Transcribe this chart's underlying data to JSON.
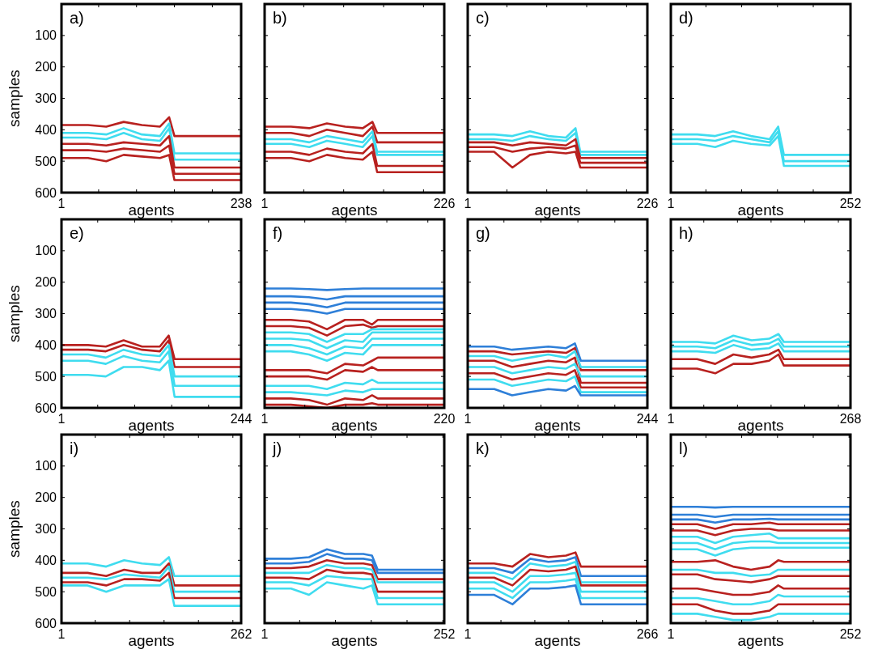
{
  "chart_data": [
    {
      "type": "line",
      "title": "a)",
      "ylabel": "samples",
      "xlabel": "agents",
      "xlim": [
        1,
        238
      ],
      "xticks": [
        1,
        {
          "value": 50,
          "label": null
        },
        {
          "value": 100,
          "label": null
        },
        {
          "value": 150,
          "label": null
        },
        {
          "value": 200,
          "label": null
        },
        238
      ],
      "ylim": [
        600,
        0
      ],
      "yticks": [
        100,
        200,
        300,
        400,
        500,
        600
      ],
      "x": [
        1,
        36,
        60,
        83,
        107,
        131,
        143,
        150,
        238
      ],
      "series": [
        {
          "color": "#b8211f",
          "values": [
            385,
            385,
            390,
            375,
            385,
            390,
            360,
            420,
            420
          ]
        },
        {
          "color": "#3fdcef",
          "values": [
            410,
            410,
            415,
            395,
            415,
            420,
            380,
            475,
            475
          ]
        },
        {
          "color": "#3fdcef",
          "values": [
            425,
            425,
            430,
            410,
            430,
            435,
            395,
            495,
            495
          ]
        },
        {
          "color": "#b8211f",
          "values": [
            445,
            445,
            450,
            440,
            445,
            450,
            420,
            520,
            520
          ]
        },
        {
          "color": "#b8211f",
          "values": [
            465,
            465,
            470,
            460,
            465,
            470,
            450,
            540,
            540
          ]
        },
        {
          "color": "#b8211f",
          "values": [
            490,
            490,
            500,
            480,
            485,
            490,
            480,
            560,
            560
          ]
        }
      ]
    },
    {
      "type": "line",
      "title": "b)",
      "xlabel": "agents",
      "tick_labels": "x",
      "xlim": [
        1,
        226
      ],
      "xticks": [
        1,
        {
          "value": 50,
          "label": null
        },
        {
          "value": 100,
          "label": null
        },
        {
          "value": 150,
          "label": null
        },
        {
          "value": 200,
          "label": null
        },
        226
      ],
      "ylim": [
        600,
        0
      ],
      "yticks": [
        100,
        200,
        300,
        400,
        500,
        600
      ],
      "x": [
        1,
        34,
        57,
        79,
        102,
        124,
        136,
        142,
        226
      ],
      "series": [
        {
          "color": "#b8211f",
          "values": [
            390,
            390,
            395,
            380,
            390,
            395,
            375,
            410,
            410
          ]
        },
        {
          "color": "#b8211f",
          "values": [
            410,
            410,
            420,
            400,
            410,
            420,
            390,
            440,
            440
          ]
        },
        {
          "color": "#3fdcef",
          "values": [
            430,
            430,
            440,
            420,
            430,
            440,
            405,
            470,
            470
          ]
        },
        {
          "color": "#3fdcef",
          "values": [
            445,
            445,
            455,
            435,
            445,
            455,
            420,
            480,
            480
          ]
        },
        {
          "color": "#b8211f",
          "values": [
            470,
            470,
            480,
            460,
            470,
            475,
            445,
            515,
            515
          ]
        },
        {
          "color": "#b8211f",
          "values": [
            490,
            490,
            500,
            480,
            490,
            495,
            470,
            535,
            535
          ]
        }
      ]
    },
    {
      "type": "line",
      "title": "c)",
      "xlabel": "agents",
      "tick_labels": "x",
      "xlim": [
        1,
        226
      ],
      "xticks": [
        1,
        {
          "value": 50,
          "label": null
        },
        {
          "value": 100,
          "label": null
        },
        {
          "value": 150,
          "label": null
        },
        {
          "value": 200,
          "label": null
        },
        226
      ],
      "ylim": [
        600,
        0
      ],
      "yticks": [
        100,
        200,
        300,
        400,
        500,
        600
      ],
      "x": [
        1,
        34,
        57,
        79,
        102,
        124,
        136,
        142,
        226
      ],
      "series": [
        {
          "color": "#3fdcef",
          "values": [
            415,
            415,
            420,
            405,
            420,
            425,
            395,
            470,
            470
          ]
        },
        {
          "color": "#3fdcef",
          "values": [
            430,
            430,
            435,
            420,
            430,
            435,
            410,
            480,
            480
          ]
        },
        {
          "color": "#b8211f",
          "values": [
            440,
            440,
            450,
            440,
            445,
            450,
            430,
            490,
            490
          ]
        },
        {
          "color": "#b8211f",
          "values": [
            455,
            455,
            470,
            460,
            455,
            460,
            450,
            505,
            505
          ]
        },
        {
          "color": "#b8211f",
          "values": [
            470,
            470,
            520,
            480,
            470,
            475,
            470,
            520,
            520
          ]
        }
      ]
    },
    {
      "type": "line",
      "title": "d)",
      "xlabel": "agents",
      "tick_labels": "x",
      "xlim": [
        1,
        252
      ],
      "xticks": [
        1,
        {
          "value": 50,
          "label": null
        },
        {
          "value": 100,
          "label": null
        },
        {
          "value": 150,
          "label": null
        },
        {
          "value": 200,
          "label": null
        },
        252
      ],
      "ylim": [
        600,
        0
      ],
      "yticks": [
        100,
        200,
        300,
        400,
        500,
        600
      ],
      "x": [
        1,
        38,
        63,
        88,
        113,
        139,
        151,
        159,
        252
      ],
      "series": [
        {
          "color": "#3fdcef",
          "values": [
            415,
            415,
            420,
            405,
            420,
            430,
            390,
            480,
            480
          ]
        },
        {
          "color": "#3fdcef",
          "values": [
            430,
            430,
            435,
            420,
            430,
            440,
            405,
            500,
            500
          ]
        },
        {
          "color": "#3fdcef",
          "values": [
            445,
            445,
            455,
            435,
            445,
            450,
            420,
            515,
            515
          ]
        }
      ]
    },
    {
      "type": "line",
      "title": "e)",
      "ylabel": "samples",
      "xlabel": "agents",
      "xlim": [
        1,
        244
      ],
      "xticks": [
        1,
        {
          "value": 50,
          "label": null
        },
        {
          "value": 100,
          "label": null
        },
        {
          "value": 150,
          "label": null
        },
        {
          "value": 200,
          "label": null
        },
        244
      ],
      "ylim": [
        600,
        0
      ],
      "yticks": [
        100,
        200,
        300,
        400,
        500,
        600
      ],
      "x": [
        1,
        37,
        61,
        85,
        110,
        134,
        146,
        154,
        244
      ],
      "series": [
        {
          "color": "#b8211f",
          "values": [
            400,
            400,
            405,
            385,
            405,
            405,
            370,
            445,
            445
          ]
        },
        {
          "color": "#b8211f",
          "values": [
            415,
            415,
            420,
            400,
            415,
            420,
            385,
            470,
            470
          ]
        },
        {
          "color": "#3fdcef",
          "values": [
            430,
            430,
            440,
            415,
            430,
            435,
            400,
            500,
            500
          ]
        },
        {
          "color": "#3fdcef",
          "values": [
            450,
            450,
            460,
            435,
            450,
            455,
            420,
            530,
            530
          ]
        },
        {
          "color": "#3fdcef",
          "values": [
            495,
            495,
            500,
            470,
            470,
            480,
            450,
            565,
            565
          ]
        }
      ]
    },
    {
      "type": "line",
      "title": "f)",
      "xlabel": "agents",
      "tick_labels": "x",
      "xlim": [
        1,
        220
      ],
      "xticks": [
        1,
        {
          "value": 50,
          "label": null
        },
        {
          "value": 100,
          "label": null
        },
        {
          "value": 150,
          "label": null
        },
        {
          "value": 200,
          "label": null
        },
        220
      ],
      "ylim": [
        600,
        0
      ],
      "yticks": [
        100,
        200,
        300,
        400,
        500,
        600
      ],
      "x": [
        1,
        33,
        55,
        77,
        99,
        121,
        132,
        139,
        220
      ],
      "series": [
        {
          "color": "#2e7fd8",
          "values": [
            220,
            220,
            222,
            225,
            222,
            220,
            220,
            220,
            220
          ]
        },
        {
          "color": "#2e7fd8",
          "values": [
            245,
            245,
            248,
            255,
            245,
            245,
            245,
            245,
            245
          ]
        },
        {
          "color": "#2e7fd8",
          "values": [
            265,
            265,
            270,
            280,
            265,
            265,
            265,
            265,
            265
          ]
        },
        {
          "color": "#2e7fd8",
          "values": [
            285,
            285,
            290,
            300,
            285,
            285,
            285,
            285,
            285
          ]
        },
        {
          "color": "#b8211f",
          "values": [
            320,
            320,
            325,
            350,
            320,
            320,
            335,
            320,
            320
          ]
        },
        {
          "color": "#b8211f",
          "values": [
            340,
            340,
            345,
            370,
            340,
            335,
            345,
            340,
            340
          ]
        },
        {
          "color": "#3fdcef",
          "values": [
            360,
            360,
            365,
            390,
            365,
            365,
            350,
            350,
            350
          ]
        },
        {
          "color": "#3fdcef",
          "values": [
            380,
            380,
            385,
            410,
            385,
            390,
            360,
            360,
            360
          ]
        },
        {
          "color": "#3fdcef",
          "values": [
            400,
            400,
            410,
            430,
            405,
            410,
            380,
            380,
            380
          ]
        },
        {
          "color": "#3fdcef",
          "values": [
            420,
            420,
            430,
            450,
            425,
            430,
            400,
            400,
            400
          ]
        },
        {
          "color": "#b8211f",
          "values": [
            480,
            480,
            480,
            490,
            460,
            465,
            450,
            440,
            440
          ]
        },
        {
          "color": "#b8211f",
          "values": [
            500,
            500,
            500,
            510,
            480,
            485,
            470,
            480,
            480
          ]
        },
        {
          "color": "#3fdcef",
          "values": [
            530,
            530,
            530,
            540,
            520,
            525,
            510,
            520,
            520
          ]
        },
        {
          "color": "#3fdcef",
          "values": [
            550,
            550,
            555,
            560,
            545,
            550,
            540,
            540,
            540
          ]
        },
        {
          "color": "#b8211f",
          "values": [
            570,
            570,
            575,
            590,
            570,
            575,
            560,
            570,
            570
          ]
        },
        {
          "color": "#b8211f",
          "values": [
            590,
            590,
            595,
            600,
            590,
            590,
            585,
            590,
            590
          ]
        }
      ]
    },
    {
      "type": "line",
      "title": "g)",
      "xlabel": "agents",
      "tick_labels": "x",
      "xlim": [
        1,
        244
      ],
      "xticks": [
        1,
        {
          "value": 50,
          "label": null
        },
        {
          "value": 100,
          "label": null
        },
        {
          "value": 150,
          "label": null
        },
        {
          "value": 200,
          "label": null
        },
        244
      ],
      "ylim": [
        600,
        0
      ],
      "yticks": [
        100,
        200,
        300,
        400,
        500,
        600
      ],
      "x": [
        1,
        37,
        61,
        85,
        110,
        134,
        146,
        154,
        244
      ],
      "series": [
        {
          "color": "#2e7fd8",
          "values": [
            405,
            405,
            415,
            410,
            405,
            410,
            395,
            450,
            450
          ]
        },
        {
          "color": "#b8211f",
          "values": [
            420,
            420,
            430,
            425,
            420,
            425,
            410,
            480,
            480
          ]
        },
        {
          "color": "#3fdcef",
          "values": [
            435,
            435,
            450,
            440,
            430,
            440,
            420,
            470,
            470
          ]
        },
        {
          "color": "#b8211f",
          "values": [
            450,
            450,
            470,
            460,
            450,
            455,
            440,
            520,
            520
          ]
        },
        {
          "color": "#3fdcef",
          "values": [
            470,
            470,
            490,
            480,
            470,
            475,
            460,
            500,
            500
          ]
        },
        {
          "color": "#b8211f",
          "values": [
            490,
            490,
            510,
            500,
            490,
            495,
            480,
            535,
            535
          ]
        },
        {
          "color": "#3fdcef",
          "values": [
            510,
            510,
            530,
            520,
            510,
            515,
            500,
            550,
            550
          ]
        },
        {
          "color": "#2e7fd8",
          "values": [
            540,
            540,
            560,
            550,
            540,
            545,
            530,
            560,
            560
          ]
        }
      ]
    },
    {
      "type": "line",
      "title": "h)",
      "xlabel": "agents",
      "tick_labels": "x",
      "xlim": [
        1,
        268
      ],
      "xticks": [
        1,
        {
          "value": 50,
          "label": null
        },
        {
          "value": 100,
          "label": null
        },
        {
          "value": 150,
          "label": null
        },
        {
          "value": 200,
          "label": null
        },
        {
          "value": 250,
          "label": null
        },
        268
      ],
      "ylim": [
        600,
        0
      ],
      "yticks": [
        100,
        200,
        300,
        400,
        500,
        600
      ],
      "x": [
        1,
        40,
        67,
        94,
        121,
        147,
        161,
        169,
        268
      ],
      "series": [
        {
          "color": "#3fdcef",
          "values": [
            390,
            390,
            395,
            370,
            385,
            380,
            365,
            390,
            390
          ]
        },
        {
          "color": "#3fdcef",
          "values": [
            405,
            405,
            410,
            385,
            400,
            395,
            380,
            405,
            405
          ]
        },
        {
          "color": "#3fdcef",
          "values": [
            420,
            420,
            425,
            400,
            415,
            410,
            395,
            420,
            420
          ]
        },
        {
          "color": "#b8211f",
          "values": [
            445,
            445,
            460,
            430,
            440,
            430,
            415,
            445,
            445
          ]
        },
        {
          "color": "#b8211f",
          "values": [
            475,
            475,
            490,
            460,
            460,
            450,
            430,
            465,
            465
          ]
        }
      ]
    },
    {
      "type": "line",
      "title": "i)",
      "ylabel": "samples",
      "xlabel": "agents",
      "xlim": [
        1,
        262
      ],
      "xticks": [
        1,
        {
          "value": 50,
          "label": null
        },
        {
          "value": 100,
          "label": null
        },
        {
          "value": 150,
          "label": null
        },
        {
          "value": 200,
          "label": null
        },
        {
          "value": 250,
          "label": null
        },
        262
      ],
      "ylim": [
        600,
        0
      ],
      "yticks": [
        100,
        200,
        300,
        400,
        500,
        600
      ],
      "x": [
        1,
        39,
        66,
        92,
        118,
        144,
        157,
        165,
        262
      ],
      "series": [
        {
          "color": "#3fdcef",
          "values": [
            410,
            410,
            420,
            400,
            410,
            415,
            390,
            450,
            450
          ]
        },
        {
          "color": "#b8211f",
          "values": [
            440,
            440,
            450,
            430,
            440,
            440,
            410,
            480,
            480
          ]
        },
        {
          "color": "#3fdcef",
          "values": [
            455,
            455,
            460,
            445,
            450,
            455,
            420,
            500,
            500
          ]
        },
        {
          "color": "#b8211f",
          "values": [
            470,
            470,
            480,
            460,
            460,
            465,
            440,
            520,
            520
          ]
        },
        {
          "color": "#3fdcef",
          "values": [
            480,
            480,
            500,
            480,
            480,
            480,
            460,
            545,
            545
          ]
        }
      ]
    },
    {
      "type": "line",
      "title": "j)",
      "xlabel": "agents",
      "tick_labels": "x",
      "xlim": [
        1,
        252
      ],
      "xticks": [
        1,
        {
          "value": 50,
          "label": null
        },
        {
          "value": 100,
          "label": null
        },
        {
          "value": 150,
          "label": null
        },
        {
          "value": 200,
          "label": null
        },
        {
          "value": 250,
          "label": null
        },
        252
      ],
      "ylim": [
        600,
        0
      ],
      "yticks": [
        100,
        200,
        300,
        400,
        500,
        600
      ],
      "x": [
        1,
        38,
        63,
        88,
        113,
        139,
        151,
        159,
        252
      ],
      "series": [
        {
          "color": "#2e7fd8",
          "values": [
            395,
            395,
            390,
            365,
            380,
            380,
            385,
            430,
            430
          ]
        },
        {
          "color": "#2e7fd8",
          "values": [
            410,
            410,
            405,
            380,
            395,
            395,
            400,
            440,
            440
          ]
        },
        {
          "color": "#b8211f",
          "values": [
            425,
            425,
            420,
            400,
            410,
            410,
            415,
            460,
            460
          ]
        },
        {
          "color": "#3fdcef",
          "values": [
            440,
            440,
            440,
            415,
            425,
            425,
            430,
            470,
            470
          ]
        },
        {
          "color": "#b8211f",
          "values": [
            455,
            455,
            460,
            430,
            440,
            440,
            445,
            500,
            500
          ]
        },
        {
          "color": "#3fdcef",
          "values": [
            470,
            470,
            480,
            450,
            455,
            460,
            460,
            520,
            520
          ]
        },
        {
          "color": "#3fdcef",
          "values": [
            490,
            490,
            510,
            470,
            480,
            490,
            480,
            540,
            540
          ]
        }
      ]
    },
    {
      "type": "line",
      "title": "k)",
      "xlabel": "agents",
      "tick_labels": "x",
      "xlim": [
        1,
        266
      ],
      "xticks": [
        1,
        {
          "value": 50,
          "label": null
        },
        {
          "value": 100,
          "label": null
        },
        {
          "value": 150,
          "label": null
        },
        {
          "value": 200,
          "label": null
        },
        {
          "value": 250,
          "label": null
        },
        266
      ],
      "ylim": [
        600,
        0
      ],
      "yticks": [
        100,
        200,
        300,
        400,
        500,
        600
      ],
      "x": [
        1,
        40,
        67,
        93,
        120,
        146,
        160,
        168,
        266
      ],
      "series": [
        {
          "color": "#b8211f",
          "values": [
            410,
            410,
            420,
            380,
            390,
            385,
            375,
            420,
            420
          ]
        },
        {
          "color": "#2e7fd8",
          "values": [
            425,
            425,
            440,
            395,
            405,
            400,
            390,
            450,
            450
          ]
        },
        {
          "color": "#3fdcef",
          "values": [
            440,
            440,
            460,
            410,
            420,
            415,
            405,
            470,
            470
          ]
        },
        {
          "color": "#b8211f",
          "values": [
            455,
            455,
            480,
            430,
            435,
            430,
            420,
            480,
            480
          ]
        },
        {
          "color": "#3fdcef",
          "values": [
            470,
            470,
            500,
            450,
            450,
            445,
            440,
            500,
            500
          ]
        },
        {
          "color": "#3fdcef",
          "values": [
            490,
            490,
            520,
            470,
            470,
            465,
            460,
            520,
            520
          ]
        },
        {
          "color": "#2e7fd8",
          "values": [
            510,
            510,
            540,
            490,
            490,
            485,
            480,
            540,
            540
          ]
        }
      ]
    },
    {
      "type": "line",
      "title": "l)",
      "xlabel": "agents",
      "tick_labels": "x",
      "xlim": [
        1,
        252
      ],
      "xticks": [
        1,
        {
          "value": 50,
          "label": null
        },
        {
          "value": 100,
          "label": null
        },
        {
          "value": 150,
          "label": null
        },
        {
          "value": 200,
          "label": null
        },
        {
          "value": 250,
          "label": null
        },
        252
      ],
      "ylim": [
        600,
        0
      ],
      "yticks": [
        100,
        200,
        300,
        400,
        500,
        600
      ],
      "x": [
        1,
        38,
        63,
        88,
        113,
        139,
        151,
        159,
        252
      ],
      "series": [
        {
          "color": "#2e7fd8",
          "values": [
            230,
            230,
            232,
            230,
            230,
            230,
            230,
            230,
            230
          ]
        },
        {
          "color": "#2e7fd8",
          "values": [
            255,
            255,
            262,
            255,
            255,
            255,
            255,
            255,
            255
          ]
        },
        {
          "color": "#2e7fd8",
          "values": [
            270,
            270,
            280,
            270,
            270,
            268,
            270,
            270,
            270
          ]
        },
        {
          "color": "#b8211f",
          "values": [
            285,
            285,
            300,
            285,
            285,
            280,
            285,
            285,
            285
          ]
        },
        {
          "color": "#b8211f",
          "values": [
            305,
            305,
            320,
            305,
            300,
            300,
            305,
            305,
            305
          ]
        },
        {
          "color": "#3fdcef",
          "values": [
            325,
            325,
            345,
            325,
            320,
            315,
            330,
            330,
            330
          ]
        },
        {
          "color": "#3fdcef",
          "values": [
            345,
            345,
            365,
            345,
            340,
            340,
            345,
            345,
            345
          ]
        },
        {
          "color": "#3fdcef",
          "values": [
            365,
            365,
            385,
            365,
            360,
            360,
            360,
            360,
            360
          ]
        },
        {
          "color": "#b8211f",
          "values": [
            405,
            405,
            400,
            420,
            430,
            420,
            400,
            405,
            405
          ]
        },
        {
          "color": "#3fdcef",
          "values": [
            430,
            430,
            440,
            440,
            450,
            445,
            430,
            430,
            430
          ]
        },
        {
          "color": "#b8211f",
          "values": [
            445,
            445,
            460,
            465,
            470,
            460,
            450,
            450,
            450
          ]
        },
        {
          "color": "#b8211f",
          "values": [
            490,
            490,
            500,
            510,
            510,
            500,
            480,
            490,
            490
          ]
        },
        {
          "color": "#3fdcef",
          "values": [
            520,
            520,
            530,
            540,
            540,
            530,
            510,
            515,
            515
          ]
        },
        {
          "color": "#b8211f",
          "values": [
            540,
            540,
            560,
            570,
            570,
            560,
            540,
            540,
            540
          ]
        },
        {
          "color": "#3fdcef",
          "values": [
            570,
            570,
            580,
            590,
            590,
            580,
            570,
            570,
            570
          ]
        }
      ]
    }
  ]
}
